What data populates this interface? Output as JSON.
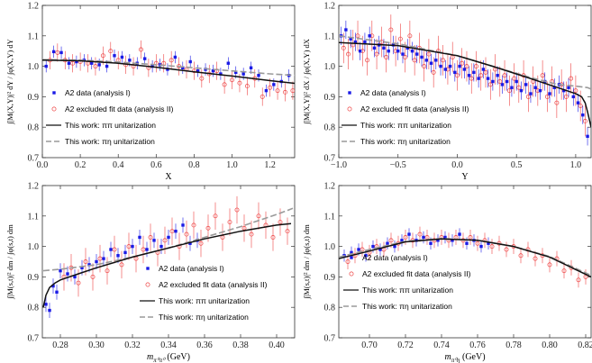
{
  "chart_data": [
    {
      "type": "scatter",
      "id": "tl",
      "xlabel": "X",
      "ylabel": "∫|M(X,Y)|² dY / ∫φ(X,Y) dY",
      "xlim": [
        0,
        1.33
      ],
      "ylim": [
        0.7,
        1.2
      ],
      "xticks": [
        0,
        0.2,
        0.4,
        0.6,
        0.8,
        1.0,
        1.2
      ],
      "xticklabels": [
        "0.0",
        "0.2",
        "0.4",
        "0.6",
        "0.8",
        "1.0",
        "1.2"
      ],
      "yticks": [
        0.7,
        0.8,
        0.9,
        1.0,
        1.1,
        1.2
      ],
      "yticklabels": [
        "0.7",
        "0.8",
        "0.9",
        "1.0",
        "1.1",
        "1.2"
      ],
      "legend": {
        "position": "bottom-left",
        "entries": [
          "A2 data (analysis I)",
          "A2 excluded fit data (analysis II)",
          "This work: ππ unitarization",
          "This work: πη unitarization"
        ]
      },
      "blue_x": [
        0.02,
        0.06,
        0.1,
        0.14,
        0.18,
        0.22,
        0.26,
        0.3,
        0.34,
        0.38,
        0.42,
        0.46,
        0.5,
        0.54,
        0.58,
        0.62,
        0.66,
        0.7,
        0.74,
        0.78,
        0.82,
        0.86,
        0.9,
        0.94,
        0.98,
        1.02,
        1.06,
        1.1,
        1.14,
        1.18,
        1.22,
        1.26,
        1.3
      ],
      "blue_y": [
        1.0,
        1.048,
        1.045,
        1.01,
        1.015,
        1.02,
        1.01,
        1.005,
        1.0,
        1.035,
        1.03,
        1.02,
        1.01,
        1.025,
        1.0,
        1.005,
        0.99,
        1.03,
        0.995,
        1.015,
        0.985,
        0.99,
        0.985,
        0.975,
        1.01,
        0.98,
        0.975,
        0.995,
        0.97,
        0.92,
        0.94,
        0.95,
        0.97
      ],
      "blue_err": 0.02,
      "red_x": [
        0.04,
        0.08,
        0.12,
        0.16,
        0.2,
        0.24,
        0.28,
        0.32,
        0.36,
        0.4,
        0.44,
        0.48,
        0.52,
        0.56,
        0.6,
        0.64,
        0.68,
        0.72,
        0.76,
        0.8,
        0.84,
        0.88,
        0.92,
        0.96,
        1.0,
        1.04,
        1.08,
        1.12,
        1.16,
        1.2,
        1.24,
        1.28,
        1.32
      ],
      "red_y": [
        1.02,
        1.045,
        1.02,
        1.01,
        1.015,
        1.01,
        1.0,
        1.035,
        1.05,
        1.02,
        1.005,
        1.0,
        1.055,
        0.995,
        1.01,
        1.01,
        1.02,
        1.0,
        0.99,
        0.985,
        0.96,
        0.975,
        0.985,
        0.94,
        0.955,
        0.945,
        0.935,
        0.96,
        0.9,
        0.93,
        0.92,
        0.915,
        0.92
      ],
      "red_err": 0.03,
      "curve_pipi": {
        "x": [
          0,
          0.2,
          0.4,
          0.6,
          0.8,
          1.0,
          1.2,
          1.33
        ],
        "y": [
          1.02,
          1.018,
          1.01,
          0.997,
          0.982,
          0.968,
          0.953,
          0.944
        ]
      },
      "curve_pieta": {
        "x": [
          0,
          0.2,
          0.4,
          0.6,
          0.8,
          1.0,
          1.2,
          1.33
        ],
        "y": [
          1.022,
          1.02,
          1.014,
          1.005,
          0.995,
          0.985,
          0.975,
          0.97
        ]
      }
    },
    {
      "type": "scatter",
      "id": "tr",
      "xlabel": "Y",
      "ylabel": "∫|M(X,Y)|² dX / ∫φ(X,Y) dX",
      "xlim": [
        -1,
        1.13
      ],
      "ylim": [
        0.7,
        1.2
      ],
      "xticks": [
        -1,
        -0.5,
        0,
        0.5,
        1
      ],
      "xticklabels": [
        "−1.0",
        "−0.5",
        "0.0",
        "0.5",
        "1.0"
      ],
      "yticks": [
        0.7,
        0.8,
        0.9,
        1.0,
        1.1,
        1.2
      ],
      "yticklabels": [
        "0.7",
        "0.8",
        "0.9",
        "1.0",
        "1.1",
        "1.2"
      ],
      "legend": {
        "position": "bottom-left",
        "entries": [
          "A2 data (analysis I)",
          "A2 excluded fit data (analysis II)",
          "This work: ππ unitarization",
          "This work: πη unitarization"
        ]
      },
      "blue_x": [
        -0.98,
        -0.94,
        -0.9,
        -0.86,
        -0.82,
        -0.78,
        -0.74,
        -0.7,
        -0.66,
        -0.62,
        -0.58,
        -0.54,
        -0.5,
        -0.46,
        -0.42,
        -0.38,
        -0.34,
        -0.3,
        -0.26,
        -0.22,
        -0.18,
        -0.14,
        -0.1,
        -0.06,
        -0.02,
        0.02,
        0.06,
        0.1,
        0.14,
        0.18,
        0.22,
        0.26,
        0.3,
        0.34,
        0.38,
        0.42,
        0.46,
        0.5,
        0.54,
        0.58,
        0.62,
        0.66,
        0.7,
        0.74,
        0.78,
        0.82,
        0.86,
        0.9,
        0.94,
        0.98,
        1.02,
        1.06,
        1.1
      ],
      "blue_y": [
        1.1,
        1.12,
        1.09,
        1.08,
        1.05,
        1.08,
        1.1,
        1.06,
        1.07,
        1.06,
        1.05,
        1.07,
        1.05,
        1.04,
        1.06,
        1.05,
        1.04,
        1.03,
        1.02,
        1.01,
        1.02,
        1.0,
        0.99,
        1.0,
        0.98,
        1.0,
        0.99,
        0.97,
        0.98,
        0.96,
        0.99,
        0.96,
        0.95,
        0.97,
        0.94,
        0.95,
        0.93,
        0.95,
        0.92,
        0.94,
        0.91,
        0.93,
        0.92,
        0.95,
        0.91,
        0.93,
        0.94,
        0.92,
        0.93,
        0.9,
        0.88,
        0.84,
        0.77
      ],
      "blue_err": 0.03,
      "red_x": [
        -0.96,
        -0.92,
        -0.88,
        -0.84,
        -0.8,
        -0.76,
        -0.72,
        -0.68,
        -0.64,
        -0.6,
        -0.56,
        -0.52,
        -0.48,
        -0.44,
        -0.4,
        -0.36,
        -0.32,
        -0.28,
        -0.24,
        -0.2,
        -0.16,
        -0.12,
        -0.08,
        -0.04,
        0.0,
        0.04,
        0.08,
        0.12,
        0.16,
        0.2,
        0.24,
        0.28,
        0.32,
        0.36,
        0.4,
        0.44,
        0.48,
        0.52,
        0.56,
        0.6,
        0.64,
        0.68,
        0.72,
        0.76,
        0.8,
        0.84,
        0.88,
        0.92,
        0.96,
        1.0,
        1.04,
        1.08
      ],
      "red_y": [
        1.06,
        1.04,
        1.07,
        1.1,
        1.05,
        1.02,
        1.1,
        1.04,
        1.08,
        1.03,
        1.12,
        1.05,
        1.09,
        1.03,
        1.1,
        1.02,
        1.06,
        1.0,
        1.04,
        0.98,
        1.05,
        1.02,
        0.99,
        1.03,
        0.97,
        1.01,
        1.0,
        0.96,
        1.0,
        0.97,
        0.98,
        0.94,
        0.99,
        0.95,
        0.97,
        0.92,
        0.96,
        0.93,
        0.97,
        0.9,
        0.95,
        0.92,
        0.97,
        0.9,
        0.95,
        0.88,
        0.94,
        0.9,
        0.96,
        0.92,
        0.87,
        0.82
      ],
      "red_err": 0.05,
      "curve_pipi": {
        "x": [
          -1,
          -0.5,
          0,
          0.3,
          0.6,
          0.85,
          1.0,
          1.05,
          1.08,
          1.1,
          1.13
        ],
        "y": [
          1.078,
          1.068,
          1.035,
          1.0,
          0.962,
          0.93,
          0.91,
          0.9,
          0.88,
          0.85,
          0.8
        ]
      },
      "curve_pieta": {
        "x": [
          -1,
          -0.5,
          0,
          0.3,
          0.6,
          0.85,
          1.0,
          1.1,
          1.13
        ],
        "y": [
          1.1,
          1.074,
          1.035,
          1.0,
          0.965,
          0.94,
          0.935,
          0.93,
          0.925
        ]
      }
    },
    {
      "type": "scatter",
      "id": "bl",
      "xlabel": "m",
      "xlabel_sub": "π⁰π⁰",
      "xlabel_unit": "(GeV)",
      "ylabel": "∫|M(s,t)|² dm / ∫φ(s,t) dm",
      "xlim": [
        0.27,
        0.41
      ],
      "ylim": [
        0.7,
        1.2
      ],
      "xticks": [
        0.28,
        0.3,
        0.32,
        0.34,
        0.36,
        0.38,
        0.4
      ],
      "xticklabels": [
        "0.28",
        "0.30",
        "0.32",
        "0.34",
        "0.36",
        "0.38",
        "0.40"
      ],
      "yticks": [
        0.7,
        0.8,
        0.9,
        1.0,
        1.1,
        1.2
      ],
      "yticklabels": [
        "0.7",
        "0.8",
        "0.9",
        "1.0",
        "1.1",
        "1.2"
      ],
      "legend": {
        "position": "bottom-right",
        "entries": [
          "A2 data (analysis I)",
          "A2 excluded fit data (analysis II)",
          "This work: ππ unitarization",
          "This work: πη unitarization"
        ]
      },
      "blue_x": [
        0.272,
        0.274,
        0.276,
        0.278,
        0.28,
        0.284,
        0.288,
        0.292,
        0.296,
        0.3,
        0.304,
        0.308,
        0.312,
        0.316,
        0.32,
        0.324,
        0.328,
        0.332,
        0.336,
        0.34,
        0.344,
        0.348,
        0.352,
        0.356
      ],
      "blue_y": [
        0.81,
        0.79,
        0.87,
        0.85,
        0.92,
        0.91,
        0.9,
        0.93,
        0.94,
        0.95,
        0.96,
        0.99,
        0.97,
        0.98,
        1.0,
        1.03,
        0.99,
        1.02,
        1.0,
        1.03,
        1.05,
        1.07,
        1.01,
        1.02
      ],
      "blue_err": 0.025,
      "red_x": [
        0.282,
        0.286,
        0.29,
        0.294,
        0.298,
        0.302,
        0.306,
        0.31,
        0.314,
        0.318,
        0.322,
        0.326,
        0.33,
        0.334,
        0.338,
        0.342,
        0.346,
        0.35,
        0.354,
        0.358,
        0.362,
        0.366,
        0.37,
        0.374,
        0.378,
        0.382,
        0.386,
        0.39,
        0.394,
        0.398,
        0.402,
        0.406
      ],
      "red_y": [
        0.9,
        0.93,
        0.88,
        0.95,
        0.9,
        0.96,
        0.92,
        0.99,
        0.94,
        1.0,
        0.96,
        0.99,
        1.03,
        0.98,
        1.02,
        1.05,
        1.0,
        1.04,
        1.07,
        1.01,
        1.06,
        1.1,
        1.03,
        1.08,
        1.12,
        1.06,
        1.04,
        1.1,
        1.07,
        1.03,
        1.08,
        1.05
      ],
      "red_err": 0.045,
      "curve_pipi": {
        "x": [
          0.2705,
          0.272,
          0.274,
          0.277,
          0.28,
          0.29,
          0.3,
          0.32,
          0.34,
          0.36,
          0.38,
          0.4,
          0.408
        ],
        "y": [
          0.8,
          0.84,
          0.865,
          0.88,
          0.89,
          0.91,
          0.93,
          0.965,
          0.995,
          1.025,
          1.05,
          1.07,
          1.075
        ]
      },
      "curve_pieta": {
        "x": [
          0.2705,
          0.28,
          0.3,
          0.32,
          0.34,
          0.36,
          0.38,
          0.4,
          0.409
        ],
        "y": [
          0.92,
          0.925,
          0.94,
          0.965,
          0.995,
          1.03,
          1.065,
          1.105,
          1.125
        ]
      }
    },
    {
      "type": "scatter",
      "id": "br",
      "xlabel": "m",
      "xlabel_sub": "π⁰η",
      "xlabel_unit": "(GeV)",
      "ylabel": "∫|M(s,t)|² dm / ∫φ(s,t) dm",
      "xlim": [
        0.683,
        0.823
      ],
      "ylim": [
        0.7,
        1.2
      ],
      "xticks": [
        0.7,
        0.72,
        0.74,
        0.76,
        0.78,
        0.8,
        0.82
      ],
      "xticklabels": [
        "0.70",
        "0.72",
        "0.74",
        "0.76",
        "0.78",
        "0.80",
        "0.82"
      ],
      "yticks": [
        0.7,
        0.8,
        0.9,
        1.0,
        1.1,
        1.2
      ],
      "yticklabels": [
        "0.7",
        "0.8",
        "0.9",
        "1.0",
        "1.1",
        "1.2"
      ],
      "legend": {
        "position": "bottom-left",
        "entries": [
          "A2 data (analysis I)",
          "A2 excluded fit data (analysis II)",
          "This work: ππ unitarization",
          "This work: πη unitarization"
        ]
      },
      "blue_x": [
        0.686,
        0.69,
        0.694,
        0.698,
        0.702,
        0.706,
        0.71,
        0.714,
        0.718,
        0.722,
        0.726,
        0.73,
        0.734,
        0.738,
        0.742,
        0.746,
        0.75,
        0.754,
        0.758,
        0.762,
        0.766
      ],
      "blue_y": [
        0.97,
        0.98,
        0.99,
        0.97,
        1.0,
        0.99,
        1.01,
        1.0,
        1.02,
        1.04,
        1.02,
        1.03,
        1.01,
        1.02,
        1.03,
        1.02,
        1.04,
        1.01,
        1.02,
        1.0,
        1.01
      ],
      "blue_err": 0.02,
      "red_x": [
        0.688,
        0.692,
        0.696,
        0.7,
        0.704,
        0.708,
        0.712,
        0.716,
        0.72,
        0.724,
        0.728,
        0.732,
        0.736,
        0.74,
        0.744,
        0.748,
        0.752,
        0.756,
        0.76,
        0.764,
        0.768,
        0.772,
        0.776,
        0.78,
        0.784,
        0.788,
        0.792,
        0.796,
        0.8,
        0.804,
        0.808,
        0.812,
        0.816,
        0.82
      ],
      "red_y": [
        0.95,
        0.97,
        0.99,
        0.98,
        1.0,
        0.99,
        1.02,
        1.01,
        1.03,
        1.02,
        1.04,
        1.03,
        1.02,
        1.03,
        1.02,
        1.03,
        1.02,
        1.03,
        1.01,
        1.02,
        1.0,
        1.01,
        0.99,
        1.0,
        0.97,
        0.99,
        0.96,
        0.97,
        0.94,
        0.96,
        0.92,
        0.93,
        0.89,
        0.9
      ],
      "red_err": 0.025,
      "curve_pipi": {
        "x": [
          0.683,
          0.7,
          0.72,
          0.74,
          0.76,
          0.78,
          0.8,
          0.823
        ],
        "y": [
          0.96,
          0.985,
          1.015,
          1.025,
          1.02,
          1.0,
          0.965,
          0.9
        ]
      },
      "curve_pieta": {
        "x": [
          0.683,
          0.7,
          0.72,
          0.74,
          0.76,
          0.78,
          0.8,
          0.823
        ],
        "y": [
          0.965,
          0.99,
          1.017,
          1.026,
          1.02,
          1.0,
          0.967,
          0.905
        ]
      }
    }
  ],
  "colors": {
    "blue": "#1a1ae6",
    "red": "#ee4444",
    "black": "#111111",
    "gray": "#9a9a9a"
  }
}
